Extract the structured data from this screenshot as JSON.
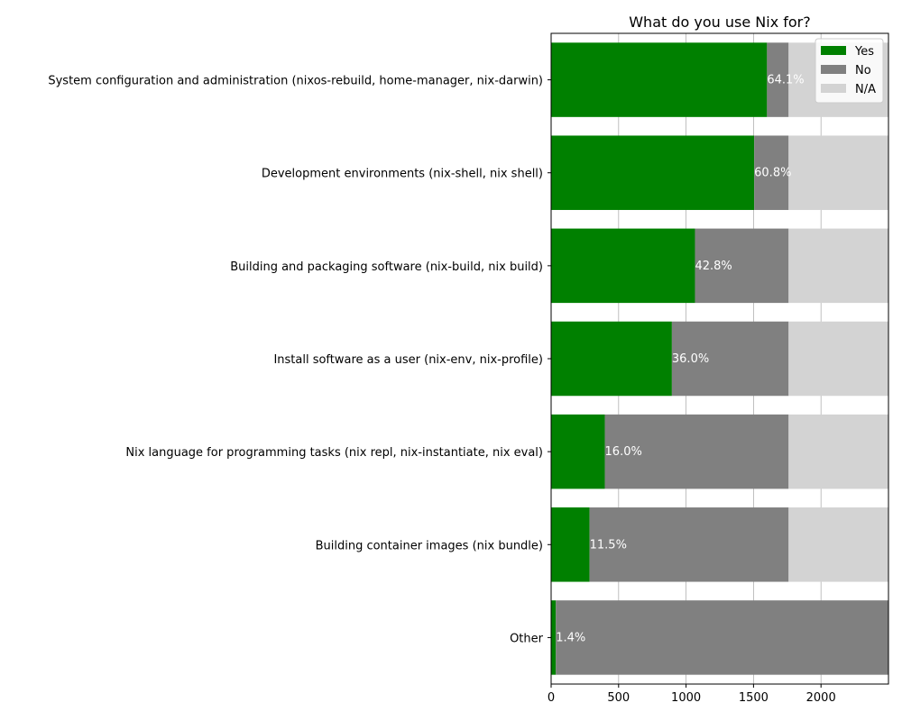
{
  "chart_data": {
    "type": "bar",
    "orientation": "horizontal",
    "stacked": true,
    "title": "What do you use Nix for?",
    "xlabel": "",
    "ylabel": "",
    "xlim": [
      0,
      2500
    ],
    "xticks": [
      0,
      500,
      1000,
      1500,
      2000
    ],
    "grid": "x",
    "legend": "top-right",
    "categories": [
      "System configuration and administration (nixos-rebuild, home-manager, nix-darwin)",
      "Development environments (nix-shell, nix shell)",
      "Building and packaging software (nix-build, nix build)",
      "Install software as a user (nix-env, nix-profile)",
      "Nix language for programming tasks (nix repl, nix-instantiate, nix eval)",
      "Building container images (nix bundle)",
      "Other"
    ],
    "series": [
      {
        "name": "Yes",
        "color": "#008000",
        "values": [
          1600,
          1505,
          1066,
          895,
          398,
          285,
          35
        ]
      },
      {
        "name": "No",
        "color": "#808080",
        "values": [
          160,
          255,
          694,
          865,
          1362,
          1475,
          2465
        ]
      },
      {
        "name": "N/A",
        "color": "#d3d3d3",
        "values": [
          740,
          740,
          740,
          740,
          740,
          740,
          0
        ]
      }
    ],
    "data_labels": [
      "64.1%",
      "60.8%",
      "42.8%",
      "36.0%",
      "16.0%",
      "11.5%",
      "1.4%"
    ]
  }
}
